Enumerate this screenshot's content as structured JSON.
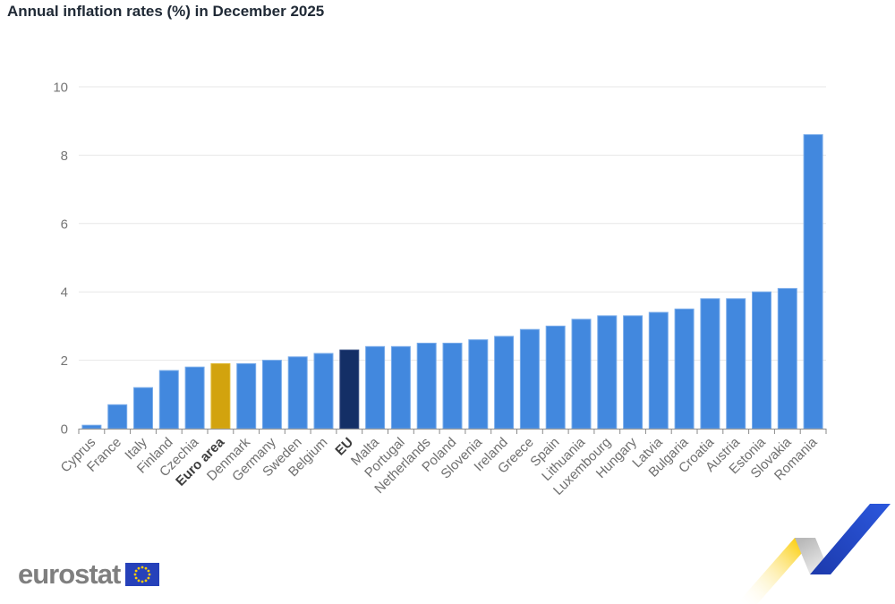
{
  "page": {
    "title": "Annual inflation rates (%) in December 2025"
  },
  "colors": {
    "title": "#202A36",
    "bar_default": "#4288DE",
    "bar_default_border": "#79ACEA",
    "bar_euro_area": "#D2A30E",
    "bar_euro_area_border": "#E0BA38",
    "bar_eu": "#142F66",
    "bar_eu_border": "#3D5386",
    "grid": "#E7E7E7",
    "axis": "#8A8A8A",
    "tick_label": "#767676",
    "category_label": "#6F6F6F",
    "category_label_emphasis": "#3C3C3C",
    "logo_text": "#7F7F7F",
    "flag_blue": "#2641BA",
    "flag_stars": "#FFCC00",
    "ribbon_yellow": "#FBCF12",
    "ribbon_blue_light": "#2B57DC",
    "ribbon_blue_dark": "#1D3BAE",
    "ribbon_fold_dark": "#B9B9B9",
    "ribbon_fold_light": "#F5F5F5"
  },
  "chart_data": {
    "type": "bar",
    "title": "Annual inflation rates (%) in December 2025",
    "xlabel": "",
    "ylabel": "",
    "ylim": [
      0,
      10
    ],
    "yticks": [
      0,
      2,
      4,
      6,
      8,
      10
    ],
    "grid": true,
    "legend": "none",
    "categories": [
      "Cyprus",
      "France",
      "Italy",
      "Finland",
      "Czechia",
      "Euro area",
      "Denmark",
      "Germany",
      "Sweden",
      "Belgium",
      "EU",
      "Malta",
      "Portugal",
      "Netherlands",
      "Poland",
      "Slovenia",
      "Ireland",
      "Greece",
      "Spain",
      "Lithuania",
      "Luxembourg",
      "Hungary",
      "Latvia",
      "Bulgaria",
      "Croatia",
      "Austria",
      "Estonia",
      "Slovakia",
      "Romania"
    ],
    "values": [
      0.1,
      0.7,
      1.2,
      1.7,
      1.8,
      1.9,
      1.9,
      2.0,
      2.1,
      2.2,
      2.3,
      2.4,
      2.4,
      2.5,
      2.5,
      2.6,
      2.7,
      2.9,
      3.0,
      3.2,
      3.3,
      3.3,
      3.4,
      3.5,
      3.8,
      3.8,
      4.0,
      4.1,
      8.6
    ],
    "emphasized_categories": [
      "Euro area",
      "EU"
    ],
    "color_overrides": {
      "Euro area": "bar_euro_area",
      "EU": "bar_eu"
    }
  },
  "footer": {
    "logo_text": "eurostat"
  }
}
